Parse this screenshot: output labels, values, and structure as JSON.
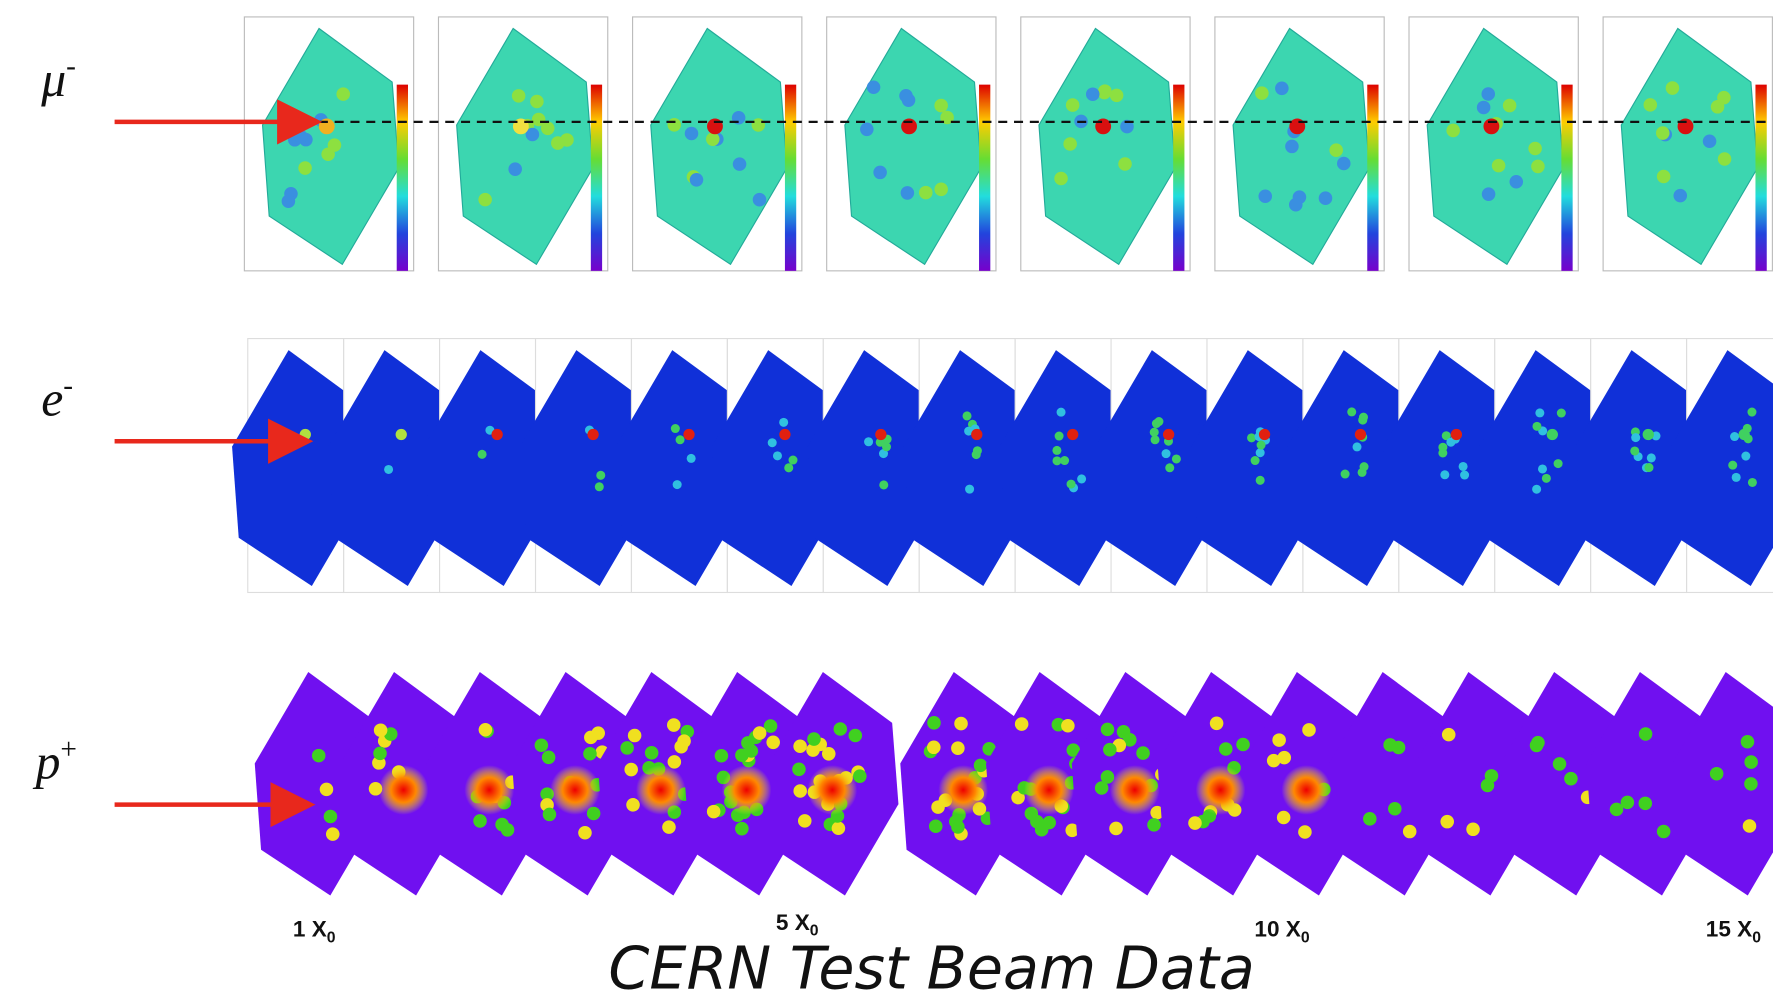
{
  "rows": [
    {
      "particle": "μ",
      "charge": "-"
    },
    {
      "particle": "e",
      "charge": "-"
    },
    {
      "particle": "p",
      "charge": "+"
    }
  ],
  "layers": [
    {
      "text": "1 X",
      "sub": "0"
    },
    {
      "text": "5 X",
      "sub": "0"
    },
    {
      "text": "10 X",
      "sub": "0"
    },
    {
      "text": "15 X",
      "sub": "0"
    }
  ],
  "caption": "CERN Test Beam Data"
}
